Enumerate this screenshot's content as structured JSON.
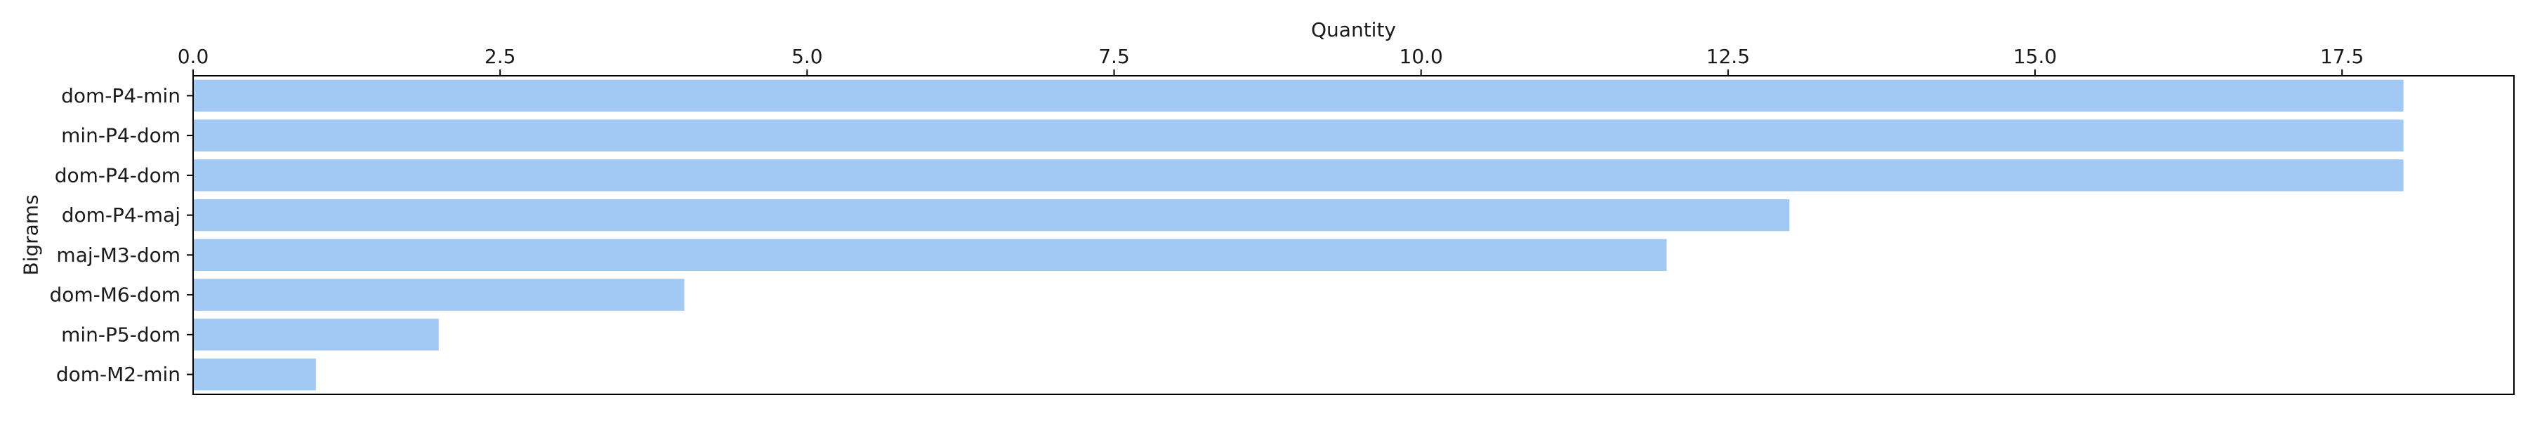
{
  "chart_data": {
    "type": "bar",
    "orientation": "horizontal",
    "categories": [
      "dom-P4-min",
      "min-P4-dom",
      "dom-P4-dom",
      "dom-P4-maj",
      "maj-M3-dom",
      "dom-M6-dom",
      "min-P5-dom",
      "dom-M2-min"
    ],
    "values": [
      18,
      18,
      18,
      13,
      12,
      4,
      2,
      1
    ],
    "title": "",
    "xlabel": "Quantity",
    "ylabel": "Bigrams",
    "xlim": [
      0,
      18.9
    ],
    "xticks": [
      0,
      2.5,
      5,
      7.5,
      10,
      12.5,
      15,
      17.5
    ],
    "xtick_labels": [
      "0.0",
      "2.5",
      "5.0",
      "7.5",
      "10.0",
      "12.5",
      "15.0",
      "17.5"
    ],
    "x_axis_position": "top",
    "grid": false,
    "bar_color": "#a1c9f4"
  }
}
